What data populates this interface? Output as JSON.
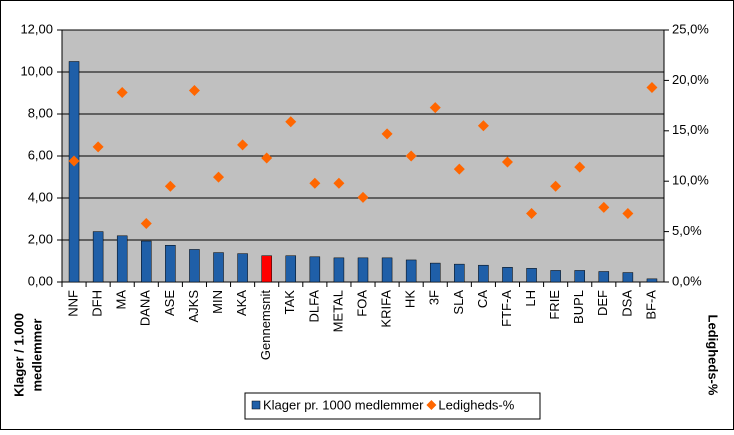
{
  "chart_data": {
    "type": "bar_scatter",
    "categories": [
      "NNF",
      "DFH",
      "MA",
      "DANA",
      "ASE",
      "AJKS",
      "MIN",
      "AKA",
      "Gennemsnit",
      "TAK",
      "DLFA",
      "METAL",
      "FOA",
      "KRIFA",
      "HK",
      "3F",
      "SLA",
      "CA",
      "FTF-A",
      "LH",
      "FRIE",
      "BUPL",
      "DEF",
      "DSA",
      "BF-A"
    ],
    "series": [
      {
        "name": "Klager pr. 1000 medlemmer",
        "type": "bar",
        "color": "#1f5fa8",
        "point_colors": [
          "#1f5fa8",
          "#1f5fa8",
          "#1f5fa8",
          "#1f5fa8",
          "#1f5fa8",
          "#1f5fa8",
          "#1f5fa8",
          "#1f5fa8",
          "#ff0000",
          "#1f5fa8",
          "#1f5fa8",
          "#1f5fa8",
          "#1f5fa8",
          "#1f5fa8",
          "#1f5fa8",
          "#1f5fa8",
          "#1f5fa8",
          "#1f5fa8",
          "#1f5fa8",
          "#1f5fa8",
          "#1f5fa8",
          "#1f5fa8",
          "#1f5fa8",
          "#1f5fa8",
          "#1f5fa8"
        ],
        "values": [
          10.5,
          2.4,
          2.2,
          1.95,
          1.75,
          1.55,
          1.4,
          1.35,
          1.25,
          1.25,
          1.2,
          1.15,
          1.15,
          1.15,
          1.05,
          0.9,
          0.85,
          0.8,
          0.7,
          0.65,
          0.55,
          0.55,
          0.5,
          0.45,
          0.15
        ]
      },
      {
        "name": "Ledigheds-%",
        "type": "scatter",
        "axis": "y2",
        "color": "#ff6600",
        "values": [
          12.0,
          13.4,
          18.8,
          5.8,
          9.5,
          19.0,
          10.4,
          13.6,
          12.3,
          15.9,
          9.8,
          9.8,
          8.4,
          14.7,
          12.5,
          17.3,
          11.2,
          15.5,
          11.9,
          6.8,
          9.5,
          11.4,
          7.4,
          6.8,
          19.3
        ]
      }
    ],
    "ylabel": [
      "Klager / 1.000",
      "medlemmer"
    ],
    "y2label": "Ledigheds-%",
    "ylim": [
      0,
      12
    ],
    "yticks": [
      {
        "value": 0,
        "label": "0,00"
      },
      {
        "value": 2,
        "label": "2,00"
      },
      {
        "value": 4,
        "label": "4,00"
      },
      {
        "value": 6,
        "label": "6,00"
      },
      {
        "value": 8,
        "label": "8,00"
      },
      {
        "value": 10,
        "label": "10,00"
      },
      {
        "value": 12,
        "label": "12,00"
      }
    ],
    "y2lim": [
      0,
      25
    ],
    "y2ticks": [
      {
        "value": 0,
        "label": "0,0%"
      },
      {
        "value": 5,
        "label": "5,0%"
      },
      {
        "value": 10,
        "label": "10,0%"
      },
      {
        "value": 15,
        "label": "15,0%"
      },
      {
        "value": 20,
        "label": "20,0%"
      },
      {
        "value": 25,
        "label": "25,0%"
      }
    ],
    "grid": true,
    "plot_background": "#c0c0c0",
    "legend": "bottom"
  }
}
